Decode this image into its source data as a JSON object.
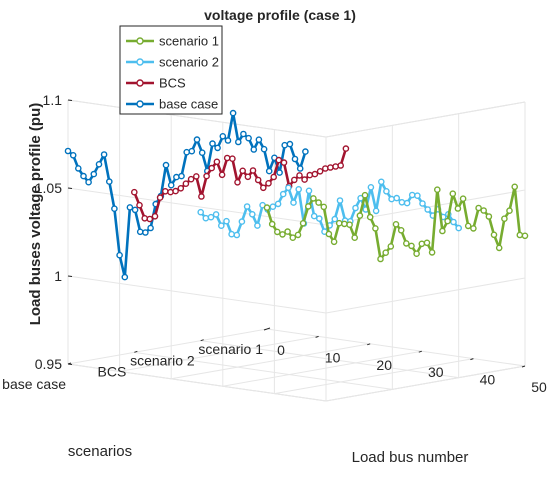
{
  "chart_data": {
    "type": "line",
    "title": "voltage profile (case 1)",
    "xlabel": "Load bus number",
    "ylabel": "Load buses voltage profile (pu)",
    "zlabel": "scenarios",
    "x_ticks": [
      "0",
      "10",
      "20",
      "30",
      "40",
      "50"
    ],
    "y_ticks": [
      "0.95",
      "1",
      "1.05",
      "1.1"
    ],
    "scenario_ticks": [
      "base case",
      "BCS",
      "scenario 2",
      "scenario 1"
    ],
    "xlim": [
      0,
      50
    ],
    "ylim": [
      0.95,
      1.1
    ],
    "grid": true,
    "legend_position": "top-left",
    "series": [
      {
        "name": "scenario 1",
        "color": "#77ac30",
        "values": [
          1.019,
          1.01,
          1.006,
          1.005,
          1.007,
          1.004,
          1.006,
          1.013,
          1.023,
          1.028,
          1.026,
          1.024,
          1.009,
          1.005,
          1.016,
          1.016,
          1.016,
          1.009,
          1.022,
          1.034,
          1.022,
          1.016,
          0.999,
          1.003,
          1.007,
          1.02,
          1.017,
          1.01,
          1.009,
          1.005,
          1.011,
          1.012,
          1.007,
          1.043,
          1.02,
          1.026,
          1.042,
          1.034,
          1.04,
          1.025,
          1.024,
          1.036,
          1.035,
          1.032,
          1.022,
          1.015,
          1.032,
          1.037,
          1.051,
          1.024,
          1.024
        ]
      },
      {
        "name": "scenario 2",
        "color": "#4dbeee",
        "values": [
          1.023,
          1.02,
          1.021,
          1.023,
          1.017,
          1.02,
          1.013,
          1.013,
          1.021,
          1.03,
          1.026,
          1.02,
          1.032,
          1.03,
          1.032,
          1.034,
          1.04,
          1.044,
          1.036,
          1.044,
          1.025,
          1.044,
          1.03,
          1.029,
          1.022,
          1.026,
          1.03,
          1.041,
          1.03,
          1.03,
          1.038,
          1.044,
          1.038,
          1.051,
          1.038,
          1.055,
          1.05,
          1.046,
          1.047,
          1.045,
          1.045,
          1.05,
          1.05,
          1.046,
          1.043,
          1.04,
          1.044,
          1.04,
          1.042,
          1.038,
          1.035
        ]
      },
      {
        "name": "BCS",
        "color": "#a2142f",
        "values": [
          1.041,
          1.034,
          1.027,
          1.027,
          1.029,
          1.04,
          1.044,
          1.044,
          1.045,
          1.047,
          1.05,
          1.053,
          1.055,
          1.044,
          1.056,
          1.061,
          1.065,
          1.058,
          1.068,
          1.068,
          1.055,
          1.062,
          1.059,
          1.063,
          1.058,
          1.054,
          1.057,
          1.061,
          1.071,
          1.07,
          1.057,
          1.061,
          1.064,
          1.062,
          1.065,
          1.066,
          1.068,
          1.07,
          1.071,
          1.072,
          1.073,
          1.083
        ]
      },
      {
        "name": "base case",
        "color": "#0072bd",
        "values": [
          1.071,
          1.069,
          1.062,
          1.058,
          1.055,
          1.06,
          1.066,
          1.072,
          1.057,
          1.042,
          1.016,
          1.004,
          1.044,
          1.043,
          1.031,
          1.031,
          1.034,
          1.048,
          1.053,
          1.071,
          1.06,
          1.065,
          1.066,
          1.08,
          1.081,
          1.088,
          1.081,
          1.071,
          1.087,
          1.085,
          1.092,
          1.09,
          1.106,
          1.09,
          1.095,
          1.093,
          1.087,
          1.093,
          1.088,
          1.076,
          1.084,
          1.076,
          1.092,
          1.093,
          1.085,
          1.08,
          1.09
        ]
      }
    ]
  }
}
